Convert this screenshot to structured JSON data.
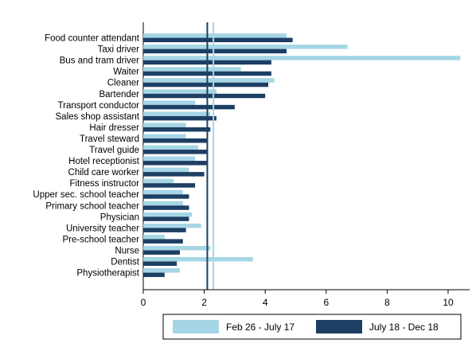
{
  "chart_data": {
    "type": "bar",
    "orientation": "horizontal",
    "categories": [
      "Food counter attendant",
      "Taxi driver",
      "Bus and tram driver",
      "Waiter",
      "Cleaner",
      "Bartender",
      "Transport conductor",
      "Sales shop assistant",
      "Hair dresser",
      "Travel steward",
      "Travel guide",
      "Hotel receptionist",
      "Child care worker",
      "Fitness instructor",
      "Upper sec. school teacher",
      "Primary school teacher",
      "Physician",
      "University teacher",
      "Pre-school teacher",
      "Nurse",
      "Dentist",
      "Physiotherapist"
    ],
    "series": [
      {
        "name": "Feb 26 - July 17",
        "color": "#a6d6e5",
        "values": [
          4.7,
          6.7,
          10.4,
          3.2,
          4.3,
          2.4,
          1.7,
          2.2,
          1.4,
          1.4,
          1.8,
          1.7,
          1.5,
          1.0,
          1.3,
          1.3,
          1.6,
          1.9,
          0.7,
          2.2,
          3.6,
          1.2
        ]
      },
      {
        "name": "July 18 - Dec 18",
        "color": "#1d3f63",
        "values": [
          4.9,
          4.7,
          4.2,
          4.2,
          4.1,
          4.0,
          3.0,
          2.4,
          2.2,
          2.1,
          2.1,
          2.1,
          2.0,
          1.7,
          1.5,
          1.5,
          1.5,
          1.4,
          1.3,
          1.2,
          1.1,
          0.7
        ]
      }
    ],
    "reference_lines": [
      {
        "value": 2.3,
        "color": "#a6d6e5"
      },
      {
        "value": 2.1,
        "color": "#1d3f63"
      }
    ],
    "xlim": [
      0,
      10.8
    ],
    "xticks": [
      0,
      2,
      4,
      6,
      8,
      10
    ],
    "grid": false,
    "legend_position": "bottom",
    "title": "",
    "xlabel": "",
    "ylabel": ""
  }
}
